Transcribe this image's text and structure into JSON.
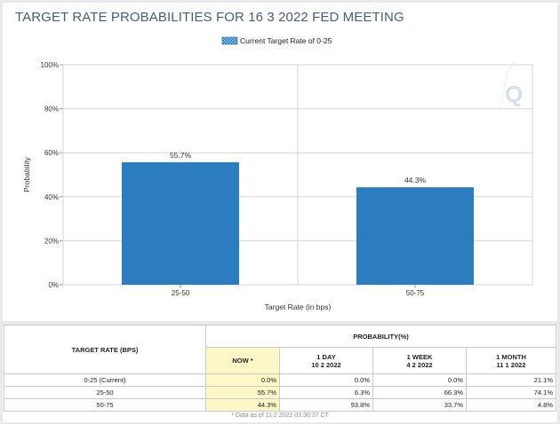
{
  "page": {
    "title": "TARGET RATE PROBABILITIES FOR 16 3 2022 FED MEETING"
  },
  "chart_data": {
    "type": "bar",
    "legend": "Current Target Rate of 0-25",
    "legend_position": "top-center",
    "categories": [
      "25-50",
      "50-75"
    ],
    "values": [
      55.7,
      44.3
    ],
    "data_labels": [
      "55.7%",
      "44.3%"
    ],
    "xlabel": "Target Rate (in bps)",
    "ylabel": "Probability",
    "ylim": [
      0,
      100
    ],
    "yticks": [
      0,
      20,
      40,
      60,
      80,
      100
    ],
    "ytick_labels": [
      "0%",
      "20%",
      "40%",
      "60%",
      "80%",
      "100%"
    ],
    "grid": true,
    "bar_color": "#2b7dbf"
  },
  "table": {
    "rate_header": "TARGET RATE (BPS)",
    "prob_header": "PROBABILITY(%)",
    "columns": [
      {
        "line1": "NOW *",
        "line2": ""
      },
      {
        "line1": "1 DAY",
        "line2": "10 2 2022"
      },
      {
        "line1": "1 WEEK",
        "line2": "4 2 2022"
      },
      {
        "line1": "1 MONTH",
        "line2": "11 1 2022"
      }
    ],
    "rows": [
      {
        "rate": "0-25 (Current)",
        "now": "0.0%",
        "day": "0.0%",
        "week": "0.0%",
        "month": "21.1%"
      },
      {
        "rate": "25-50",
        "now": "55.7%",
        "day": "6.3%",
        "week": "66.3%",
        "month": "74.1%"
      },
      {
        "rate": "50-75",
        "now": "44.3%",
        "day": "93.8%",
        "week": "33.7%",
        "month": "4.8%"
      }
    ],
    "footnote": "* Data as of 11 2 2022 03:30:37 CT"
  },
  "colors": {
    "title": "#4a5d74",
    "bar": "#2b7dbf",
    "now_cell": "#fbf7c6"
  }
}
